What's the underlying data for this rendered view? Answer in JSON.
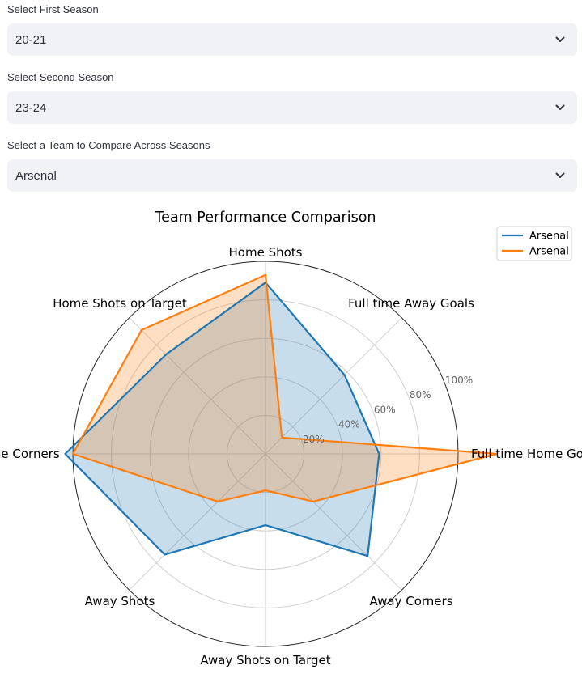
{
  "selectors": [
    {
      "label": "Select First Season",
      "value": "20-21"
    },
    {
      "label": "Select Second Season",
      "value": "23-24"
    },
    {
      "label": "Select a Team to Compare Across Seasons",
      "value": "Arsenal"
    }
  ],
  "chart_data": {
    "type": "radar",
    "title": "Team Performance Comparison",
    "categories": [
      "Full time Home Goals",
      "Full time Away Goals",
      "Home Shots",
      "Home Shots on Target",
      "Home Corners",
      "Away Shots",
      "Away Shots on Target",
      "Away Corners"
    ],
    "rlim": [
      0,
      100
    ],
    "rticks": [
      20,
      40,
      60,
      80,
      100
    ],
    "rtick_labels": [
      "20%",
      "40%",
      "60%",
      "80%",
      "100%"
    ],
    "grid": true,
    "legend_position": "top-right",
    "series": [
      {
        "name": "Arsenal",
        "color": "#1f77b4",
        "values": [
          59,
          58,
          89,
          73,
          104,
          74,
          37,
          75
        ]
      },
      {
        "name": "Arsenal",
        "color": "#ff7f0e",
        "values": [
          120,
          12,
          93,
          91,
          100,
          35,
          19,
          35
        ]
      }
    ]
  }
}
